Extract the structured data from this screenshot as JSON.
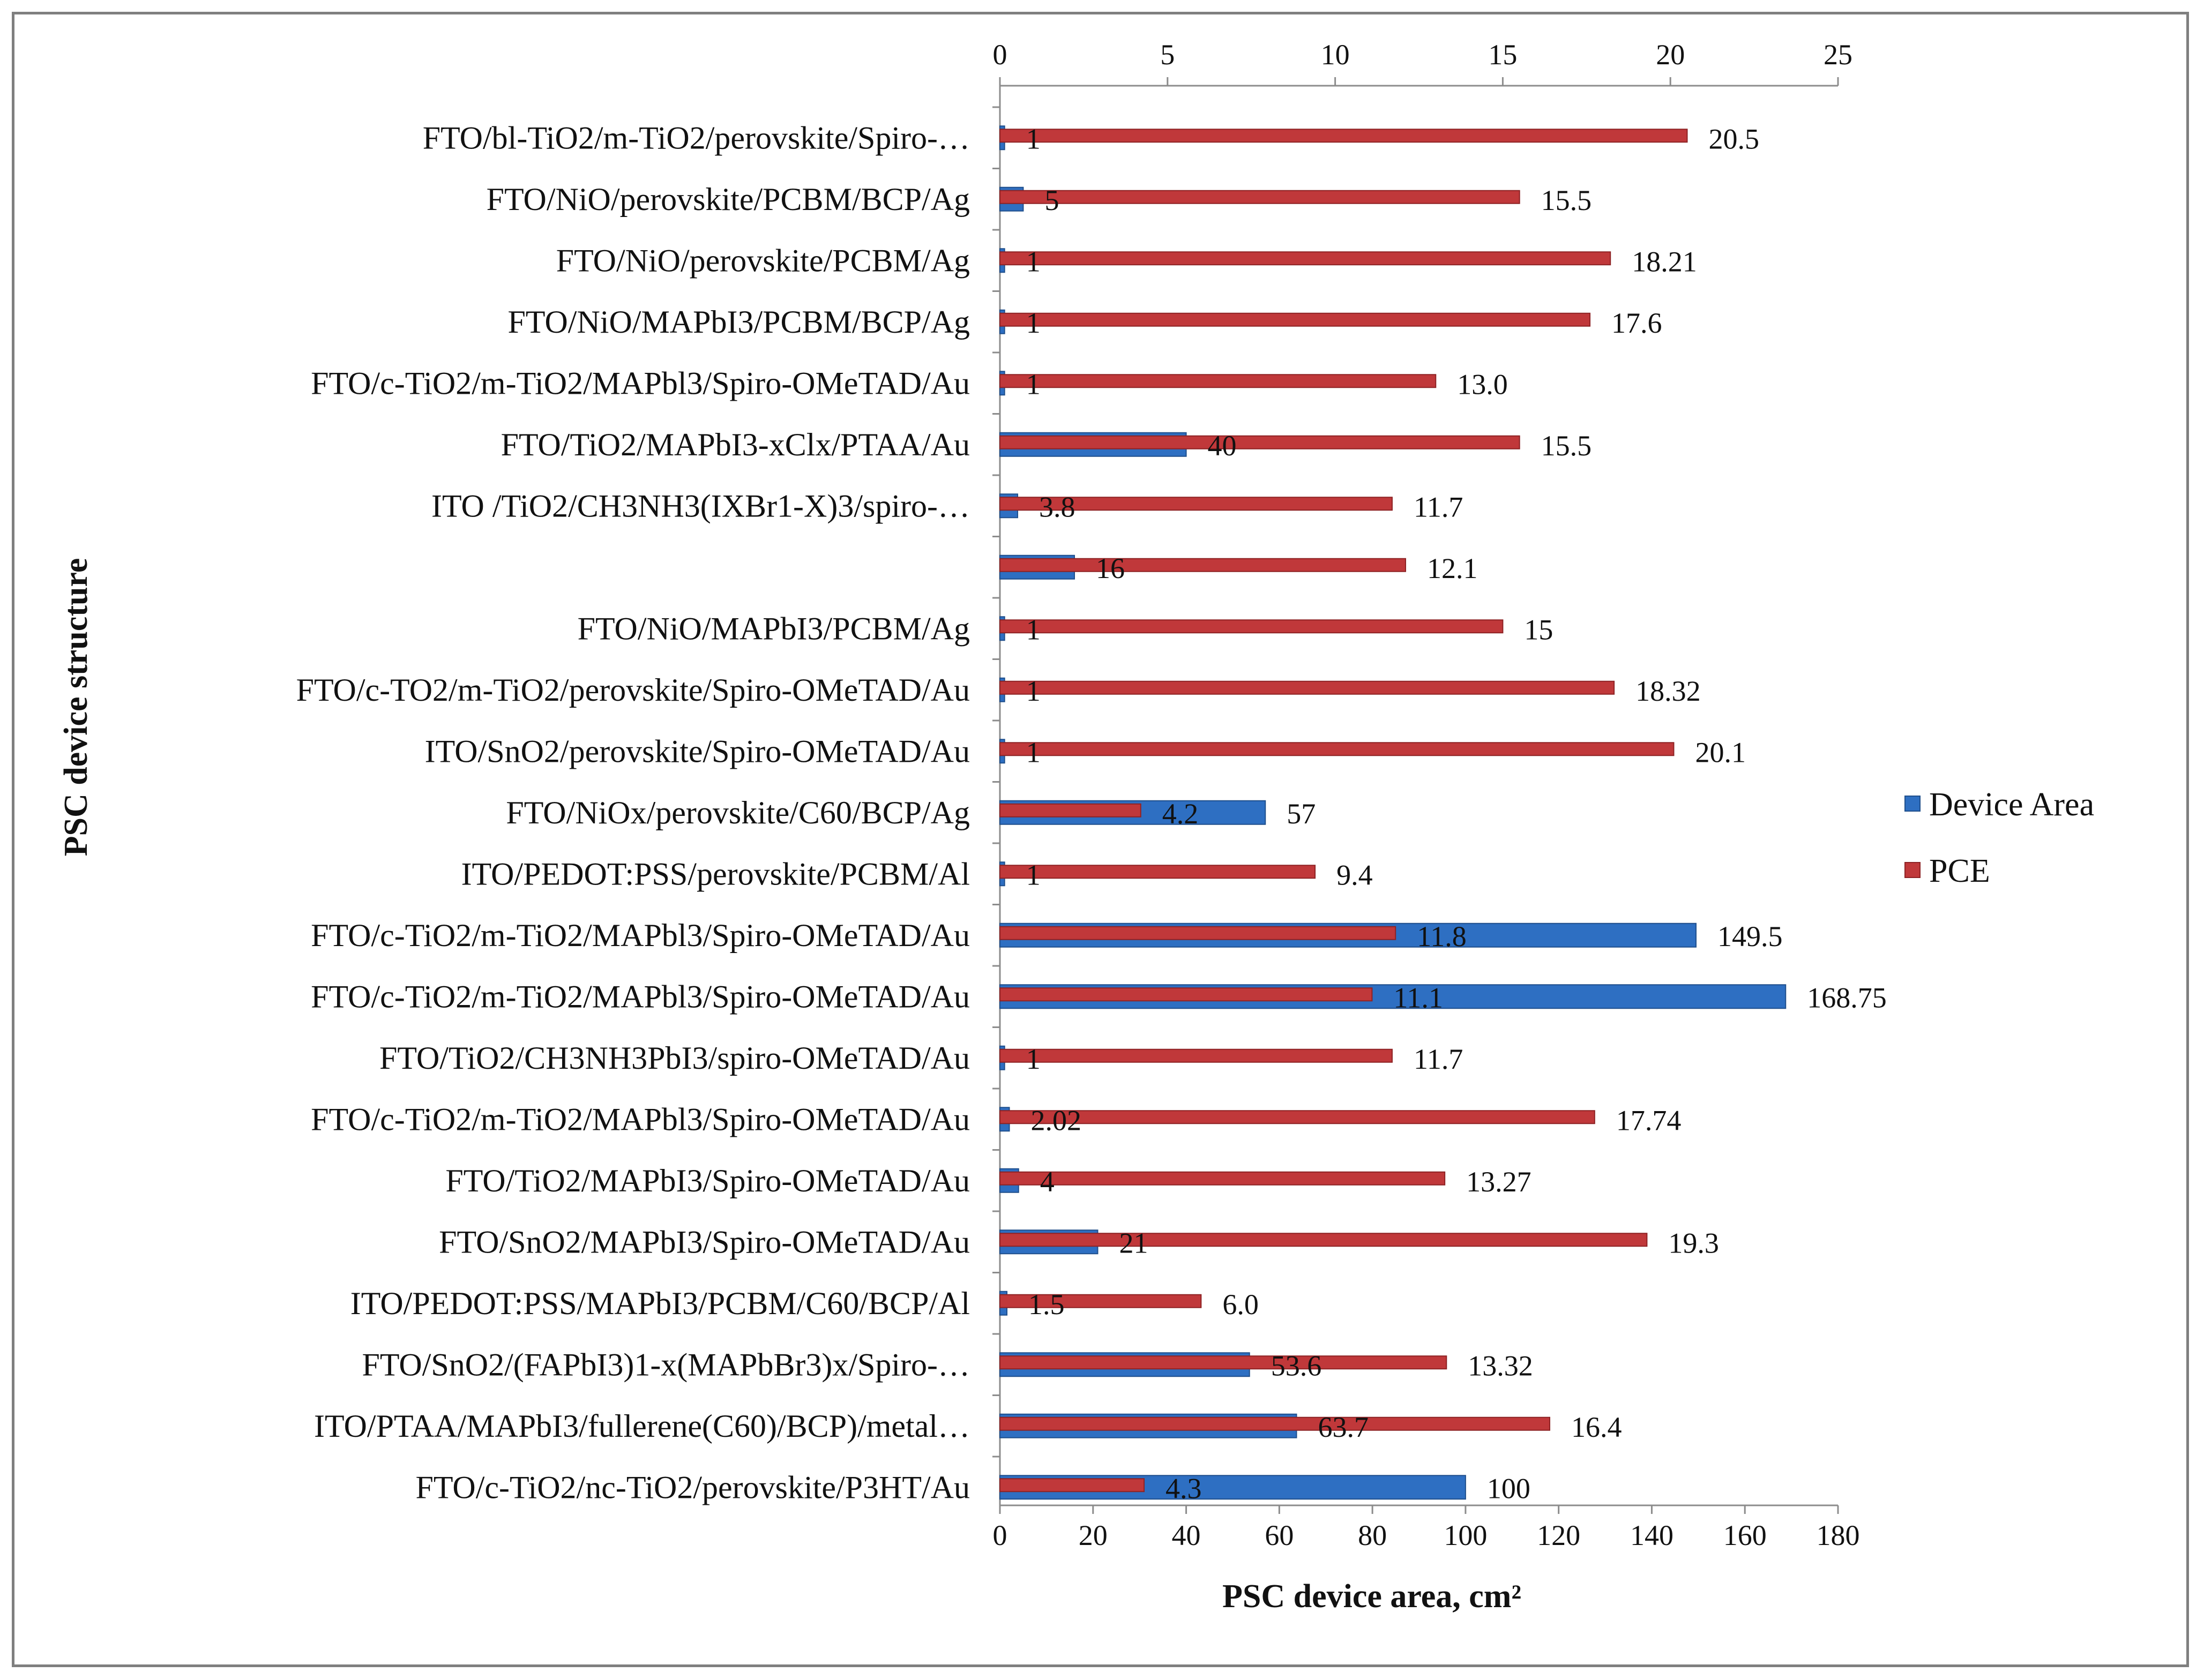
{
  "chart_data": {
    "type": "bar",
    "orientation": "horizontal",
    "title": "",
    "ylabel": "PSC device structure",
    "xlabel": "PSC device area, cm²",
    "x_axis_bottom": {
      "label": "PSC device area, cm²",
      "range": [
        0,
        180
      ],
      "ticks": [
        0,
        20,
        40,
        60,
        80,
        100,
        120,
        140,
        160,
        180
      ]
    },
    "x_axis_top": {
      "label": "",
      "range": [
        0,
        25
      ],
      "ticks": [
        0,
        5,
        10,
        15,
        20,
        25
      ]
    },
    "legend": {
      "position": "right",
      "entries": [
        "Device Area",
        "PCE"
      ]
    },
    "colors": {
      "device_area": "#2e6fc2",
      "device_area_edge": "#1f4f8c",
      "pce": "#c0383a",
      "pce_edge": "#8e2224",
      "axis": "#8c8c8c"
    },
    "categories": [
      "FTO/bl-TiO2/m-TiO2/perovskite/Spiro-…",
      "FTO/NiO/perovskite/PCBM/BCP/Ag",
      "FTO/NiO/perovskite/PCBM/Ag",
      "FTO/NiO/MAPbI3/PCBM/BCP/Ag",
      "FTO/c-TiO2/m-TiO2/MAPbl3/Spiro-OMeTAD/Au",
      "FTO/TiO2/MAPbI3-xClx/PTAA/Au",
      "ITO /TiO2/CH3NH3(IXBr1-X)3/spiro-…",
      "",
      "FTO/NiO/MAPbI3/PCBM/Ag",
      "FTO/c-TO2/m-TiO2/perovskite/Spiro-OMeTAD/Au",
      "ITO/SnO2/perovskite/Spiro-OMeTAD/Au",
      "FTO/NiOx/perovskite/C60/BCP/Ag",
      "ITO/PEDOT:PSS/perovskite/PCBM/Al",
      "FTO/c-TiO2/m-TiO2/MAPbl3/Spiro-OMeTAD/Au",
      "FTO/c-TiO2/m-TiO2/MAPbl3/Spiro-OMeTAD/Au",
      "FTO/TiO2/CH3NH3PbI3/spiro-OMeTAD/Au",
      "FTO/c-TiO2/m-TiO2/MAPbl3/Spiro-OMeTAD/Au",
      "FTO/TiO2/MAPbI3/Spiro-OMeTAD/Au",
      "FTO/SnO2/MAPbI3/Spiro-OMeTAD/Au",
      "ITO/PEDOT:PSS/MAPbI3/PCBM/C60/BCP/Al",
      "FTO/SnO2/(FAPbI3)1-x(MAPbBr3)x/Spiro-…",
      "ITO/PTAA/MAPbI3/fullerene(C60)/BCP)/metal…",
      "FTO/c-TiO2/nc-TiO2/perovskite/P3HT/Au"
    ],
    "series": [
      {
        "name": "Device Area",
        "axis": "bottom",
        "values": [
          1,
          5,
          1,
          1,
          1,
          40,
          3.8,
          16,
          1,
          1,
          1,
          57,
          1,
          149.5,
          168.75,
          1,
          2.02,
          4,
          21,
          1.5,
          53.6,
          63.7,
          100
        ],
        "labels": [
          "1",
          "5",
          "1",
          "1",
          "1",
          "40",
          "3.8",
          "16",
          "1",
          "1",
          "1",
          "57",
          "1",
          "149.5",
          "168.75",
          "1",
          "2.02",
          "4",
          "21",
          "1.5",
          "53.6",
          "63.7",
          "100"
        ]
      },
      {
        "name": "PCE",
        "axis": "top",
        "values": [
          20.5,
          15.5,
          18.21,
          17.6,
          13.0,
          15.5,
          11.7,
          12.1,
          15,
          18.32,
          20.1,
          4.2,
          9.4,
          11.8,
          11.1,
          11.7,
          17.74,
          13.27,
          19.3,
          6.0,
          13.32,
          16.4,
          4.3
        ],
        "labels": [
          "20.5",
          "15.5",
          "18.21",
          "17.6",
          "13.0",
          "15.5",
          "11.7",
          "12.1",
          "15",
          "18.32",
          "20.1",
          "4.2",
          "9.4",
          "11.8",
          "11.1",
          "11.7",
          "17.74",
          "13.27",
          "19.3",
          "6.0",
          "13.32",
          "16.4",
          "4.3"
        ]
      }
    ]
  }
}
